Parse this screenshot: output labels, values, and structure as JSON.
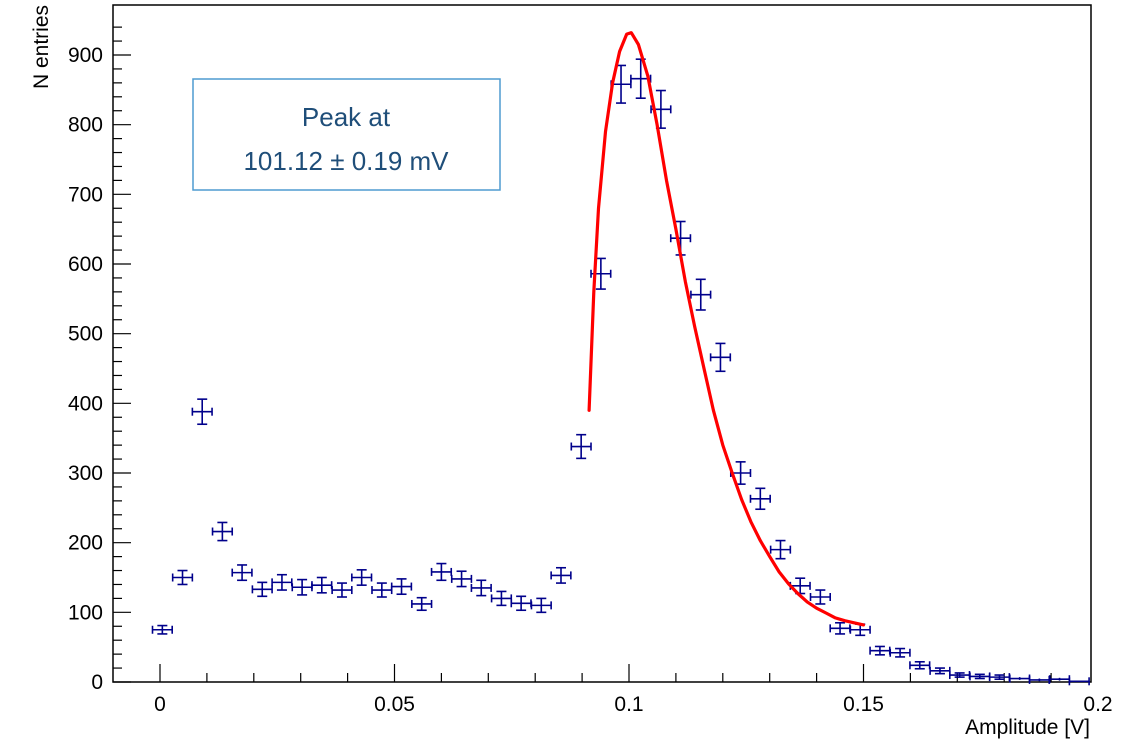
{
  "chart_data": {
    "type": "scatter",
    "title": "",
    "xlabel": "Amplitude [V]",
    "ylabel": "N entries",
    "xlim": [
      -0.01,
      0.2
    ],
    "ylim": [
      0,
      960
    ],
    "grid": false,
    "x_ticks": [
      0,
      0.05,
      0.1,
      0.15,
      0.2
    ],
    "x_tick_labels": [
      "0",
      "0.05",
      "0.1",
      "0.15",
      "0.2"
    ],
    "y_ticks": [
      0,
      100,
      200,
      300,
      400,
      500,
      600,
      700,
      800,
      900
    ],
    "y_tick_labels": [
      "0",
      "100",
      "200",
      "300",
      "400",
      "500",
      "600",
      "700",
      "800",
      "900"
    ],
    "series": [
      {
        "kind": "points-with-errors",
        "color": "#00008b",
        "x_halfwidth": 0.0021,
        "points": [
          [
            0.0005,
            75,
            6
          ],
          [
            0.0048,
            150,
            10
          ],
          [
            0.009,
            388,
            18
          ],
          [
            0.0133,
            216,
            13
          ],
          [
            0.0175,
            157,
            11
          ],
          [
            0.0218,
            133,
            10
          ],
          [
            0.026,
            143,
            11
          ],
          [
            0.0303,
            136,
            11
          ],
          [
            0.0345,
            139,
            11
          ],
          [
            0.0388,
            132,
            10
          ],
          [
            0.043,
            150,
            11
          ],
          [
            0.0473,
            132,
            10
          ],
          [
            0.0515,
            137,
            11
          ],
          [
            0.0558,
            112,
            9
          ],
          [
            0.06,
            158,
            12
          ],
          [
            0.0643,
            148,
            11
          ],
          [
            0.0685,
            135,
            11
          ],
          [
            0.0728,
            120,
            10
          ],
          [
            0.077,
            113,
            10
          ],
          [
            0.0813,
            110,
            10
          ],
          [
            0.0855,
            153,
            11
          ],
          [
            0.0898,
            338,
            17
          ],
          [
            0.094,
            586,
            22
          ],
          [
            0.0983,
            858,
            27
          ],
          [
            0.1025,
            866,
            28
          ],
          [
            0.1068,
            822,
            27
          ],
          [
            0.111,
            637,
            24
          ],
          [
            0.1153,
            556,
            22
          ],
          [
            0.1195,
            466,
            20
          ],
          [
            0.1238,
            300,
            16
          ],
          [
            0.128,
            263,
            15
          ],
          [
            0.1323,
            190,
            13
          ],
          [
            0.1365,
            138,
            11
          ],
          [
            0.1408,
            122,
            10
          ],
          [
            0.145,
            77,
            8
          ],
          [
            0.1493,
            75,
            8
          ],
          [
            0.1535,
            45,
            6
          ],
          [
            0.1578,
            42,
            6
          ],
          [
            0.162,
            24,
            5
          ],
          [
            0.1663,
            16,
            4
          ],
          [
            0.1705,
            10,
            3
          ],
          [
            0.1748,
            8,
            3
          ],
          [
            0.179,
            7,
            3
          ],
          [
            0.1833,
            5,
            2
          ],
          [
            0.1875,
            3,
            2
          ],
          [
            0.1918,
            4,
            2
          ],
          [
            0.196,
            1,
            1
          ]
        ]
      },
      {
        "kind": "fit-curve",
        "color": "#ff0000",
        "points": [
          [
            0.0915,
            390
          ],
          [
            0.0925,
            560
          ],
          [
            0.0935,
            680
          ],
          [
            0.095,
            790
          ],
          [
            0.0965,
            860
          ],
          [
            0.098,
            905
          ],
          [
            0.0995,
            930
          ],
          [
            0.1005,
            932
          ],
          [
            0.102,
            915
          ],
          [
            0.104,
            870
          ],
          [
            0.106,
            800
          ],
          [
            0.108,
            720
          ],
          [
            0.11,
            650
          ],
          [
            0.112,
            575
          ],
          [
            0.114,
            510
          ],
          [
            0.116,
            450
          ],
          [
            0.118,
            390
          ],
          [
            0.12,
            340
          ],
          [
            0.122,
            300
          ],
          [
            0.124,
            262
          ],
          [
            0.126,
            230
          ],
          [
            0.128,
            203
          ],
          [
            0.13,
            180
          ],
          [
            0.132,
            158
          ],
          [
            0.134,
            141
          ],
          [
            0.136,
            127
          ],
          [
            0.138,
            115
          ],
          [
            0.14,
            106
          ],
          [
            0.142,
            99
          ],
          [
            0.144,
            92
          ],
          [
            0.146,
            88
          ],
          [
            0.15,
            82
          ]
        ]
      }
    ],
    "annotation": {
      "line1": "Peak at",
      "line2": "101.12 ± 0.19 mV",
      "border_color": "#4f9bd0",
      "text_color": "#1f4e79"
    }
  }
}
